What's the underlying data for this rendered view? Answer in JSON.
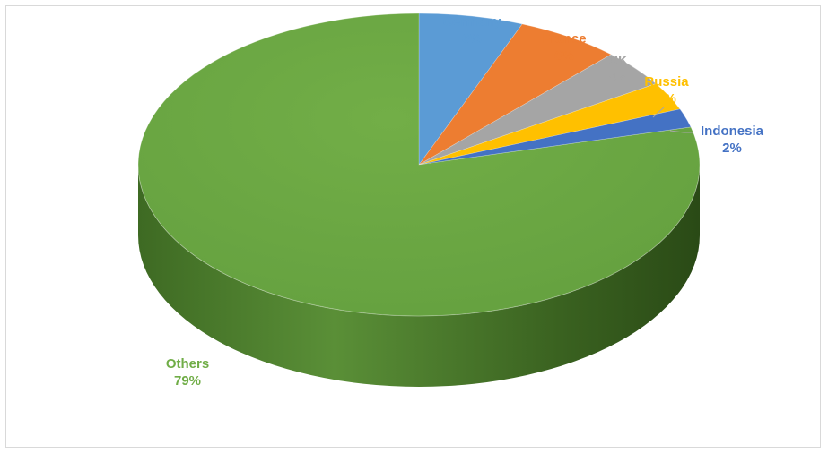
{
  "chart_data": {
    "type": "pie",
    "style": "3d",
    "categories": [
      "Germany",
      "France",
      "UK",
      "Russia",
      "Indonesia",
      "Others"
    ],
    "values": [
      6,
      6,
      4,
      3,
      2,
      79
    ],
    "value_labels": [
      "6%",
      "6%",
      "4%",
      "3%",
      "2%",
      "79%"
    ],
    "colors": [
      "#5b9bd5",
      "#ed7d31",
      "#a5a5a5",
      "#ffc000",
      "#4472c4",
      "#70ad47"
    ],
    "legend": "none"
  }
}
